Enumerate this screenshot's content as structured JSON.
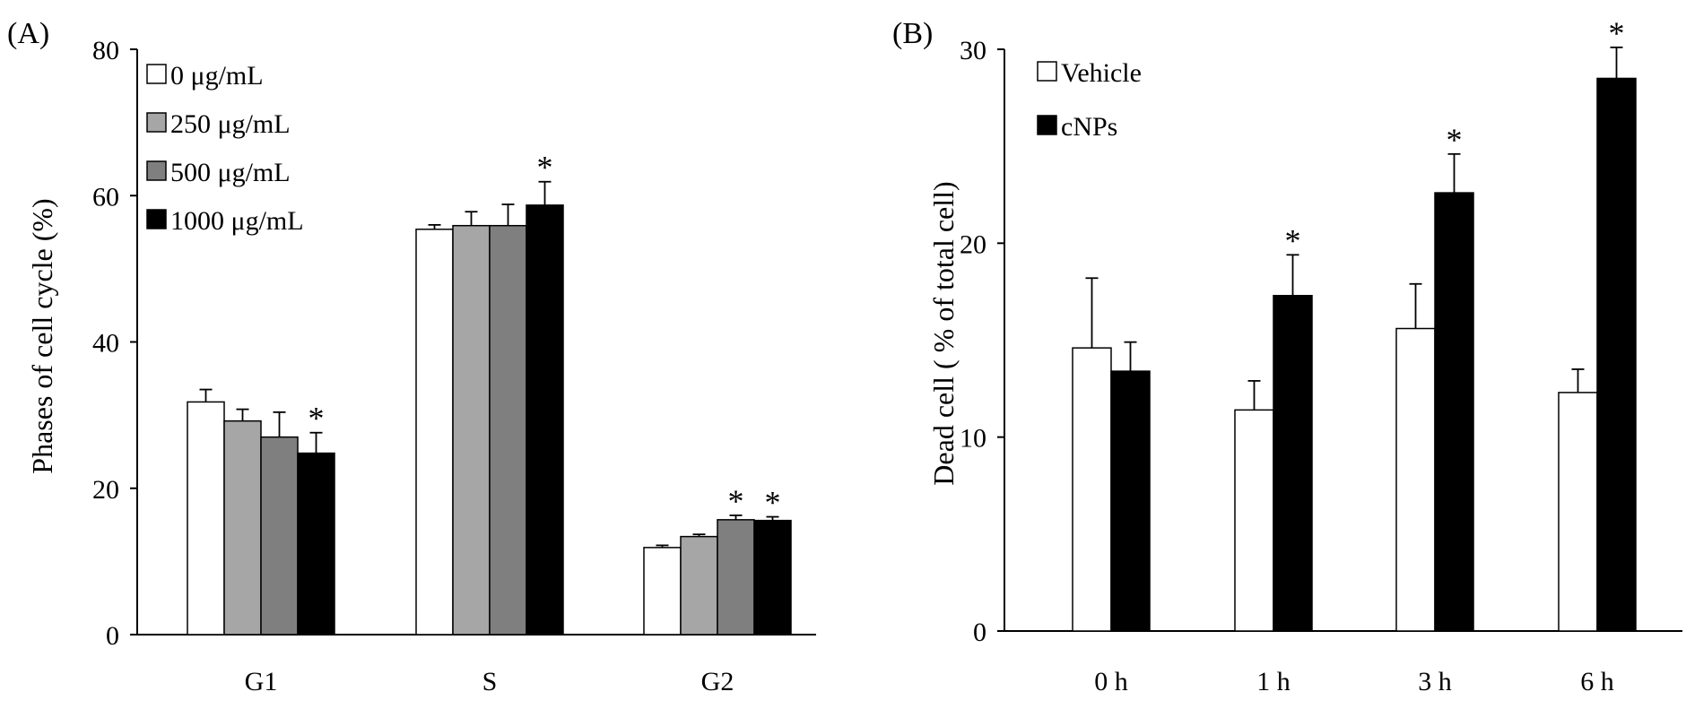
{
  "chart_data": [
    {
      "panel_label": "(A)",
      "type": "bar",
      "categories": [
        "G1",
        "S",
        "G2"
      ],
      "ylabel": "Phases of cell cycle (%)",
      "xlabel": "",
      "ylim": [
        0,
        80
      ],
      "yticks": [
        "0",
        "20",
        "40",
        "60",
        "80"
      ],
      "grid": false,
      "legend_position": "top-left",
      "series": [
        {
          "name": "0 μg/mL",
          "color": "#ffffff",
          "values": [
            31.8,
            55.4,
            11.9
          ],
          "errors": [
            1.7,
            0.6,
            0.3
          ],
          "significant": [
            false,
            false,
            false
          ]
        },
        {
          "name": "250 μg/mL",
          "color": "#a6a6a6",
          "values": [
            29.2,
            55.9,
            13.4
          ],
          "errors": [
            1.6,
            1.9,
            0.3
          ],
          "significant": [
            false,
            false,
            false
          ]
        },
        {
          "name": "500 μg/mL",
          "color": "#7f7f7f",
          "values": [
            27.0,
            55.9,
            15.7
          ],
          "errors": [
            3.4,
            2.9,
            0.6
          ],
          "significant": [
            false,
            false,
            true
          ]
        },
        {
          "name": "1000 μg/mL",
          "color": "#000000",
          "values": [
            24.8,
            58.7,
            15.6
          ],
          "errors": [
            2.8,
            3.2,
            0.5
          ],
          "significant": [
            true,
            true,
            true
          ]
        }
      ],
      "significance_marker": "*"
    },
    {
      "panel_label": "(B)",
      "type": "bar",
      "categories": [
        "0 h",
        "1 h",
        "3 h",
        "6 h"
      ],
      "ylabel": "Dead cell ( % of total cell)",
      "xlabel": "",
      "ylim": [
        0,
        30
      ],
      "yticks": [
        "0",
        "10",
        "20",
        "30"
      ],
      "grid": false,
      "legend_position": "top-left",
      "series": [
        {
          "name": "Vehicle",
          "color": "#ffffff",
          "values": [
            14.6,
            11.4,
            15.6,
            12.3
          ],
          "errors": [
            3.6,
            1.5,
            2.3,
            1.2
          ],
          "significant": [
            false,
            false,
            false,
            false
          ]
        },
        {
          "name": "cNPs",
          "color": "#000000",
          "values": [
            13.4,
            17.3,
            22.6,
            28.5
          ],
          "errors": [
            1.5,
            2.1,
            2.0,
            1.6
          ],
          "significant": [
            false,
            true,
            true,
            true
          ]
        }
      ],
      "significance_marker": "*"
    }
  ]
}
